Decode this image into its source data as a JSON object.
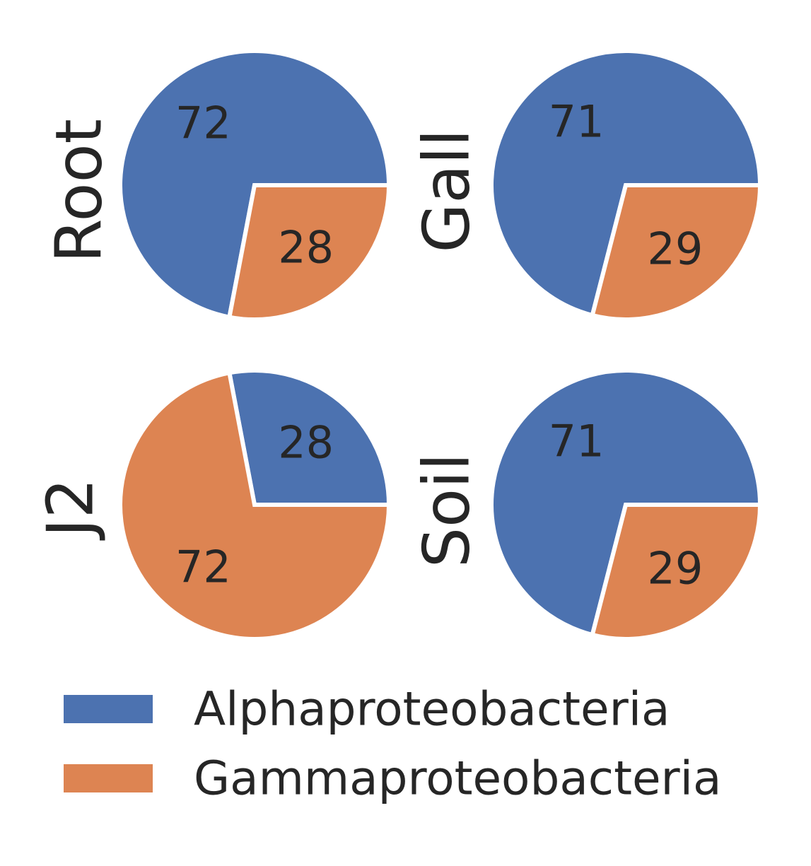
{
  "chart_data": [
    {
      "type": "pie",
      "ylabel": "Root",
      "categories": [
        "Alphaproteobacteria",
        "Gammaproteobacteria"
      ],
      "values": [
        72,
        28
      ],
      "labels": [
        "72",
        "28"
      ]
    },
    {
      "type": "pie",
      "ylabel": "Gall",
      "categories": [
        "Alphaproteobacteria",
        "Gammaproteobacteria"
      ],
      "values": [
        71,
        29
      ],
      "labels": [
        "71",
        "29"
      ]
    },
    {
      "type": "pie",
      "ylabel": "J2",
      "categories": [
        "Alphaproteobacteria",
        "Gammaproteobacteria"
      ],
      "values": [
        28,
        72
      ],
      "labels": [
        "28",
        "72"
      ]
    },
    {
      "type": "pie",
      "ylabel": "Soil",
      "categories": [
        "Alphaproteobacteria",
        "Gammaproteobacteria"
      ],
      "values": [
        71,
        29
      ],
      "labels": [
        "71",
        "29"
      ]
    }
  ],
  "legend": {
    "placement": "bottom",
    "items": [
      {
        "label": "Alphaproteobacteria",
        "color": "#4c72b0"
      },
      {
        "label": "Gammaproteobacteria",
        "color": "#dd8452"
      }
    ]
  }
}
